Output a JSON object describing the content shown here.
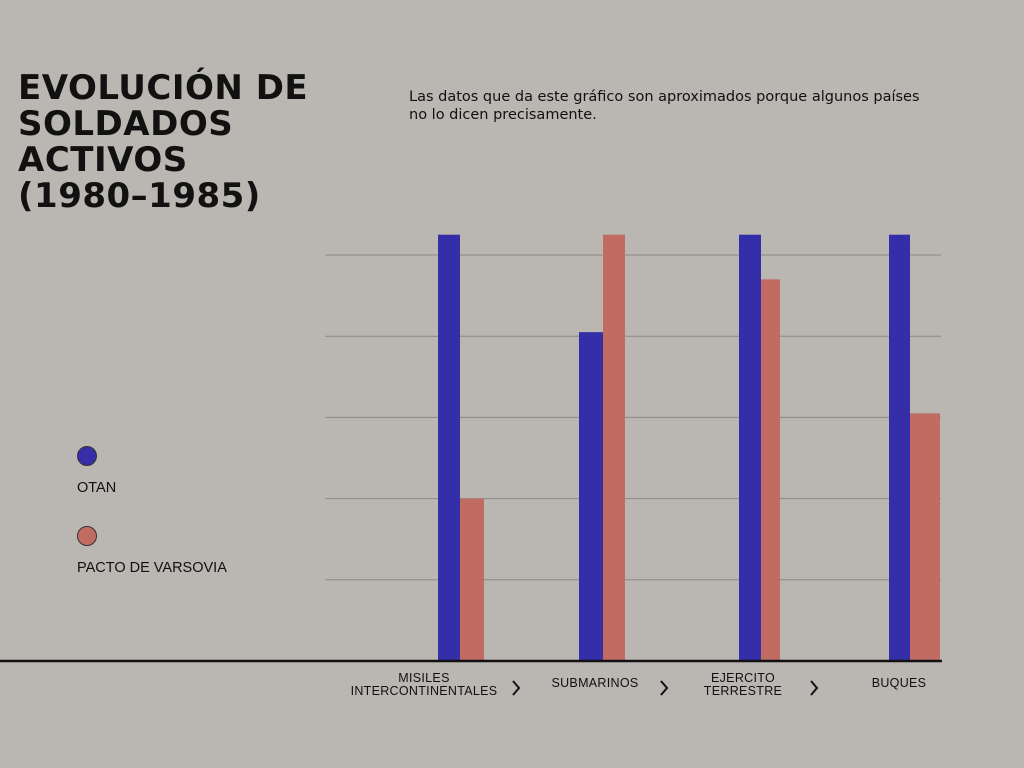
{
  "title": "EVOLUCIÓN DE\nSOLDADOS\nACTIVOS\n(1980–1985)",
  "note": "Las datos que da este gráfico son aproximados porque algunos países no lo dicen precisamente.",
  "colors": {
    "otan": "#342ea8",
    "pacto": "#c06c63",
    "grid": "#8c8884",
    "axis": "#111111",
    "background": "#bab6b2"
  },
  "icons": {
    "next": "chevron-right-icon"
  },
  "chart_data": {
    "type": "bar",
    "title": "EVOLUCIÓN DE SOLDADOS ACTIVOS (1980–1985)",
    "categories": [
      "MISILES\nINTERCONTINENTALES",
      "SUBMARINOS",
      "EJERCITO\nTERRESTRE",
      "BUQUES"
    ],
    "series": [
      {
        "name": "OTAN",
        "color": "#342ea8",
        "values": [
          1.05,
          0.81,
          1.05,
          1.05
        ]
      },
      {
        "name": "PACTO DE VARSOVIA",
        "color": "#c06c63",
        "values": [
          0.4,
          1.05,
          0.94,
          0.61
        ]
      }
    ],
    "ylim": [
      0,
      1
    ],
    "y_ticks": [
      0.2,
      0.4,
      0.6,
      0.8,
      1.0
    ],
    "y_tick_labels_shown": false,
    "grid": true,
    "legend": "left"
  }
}
